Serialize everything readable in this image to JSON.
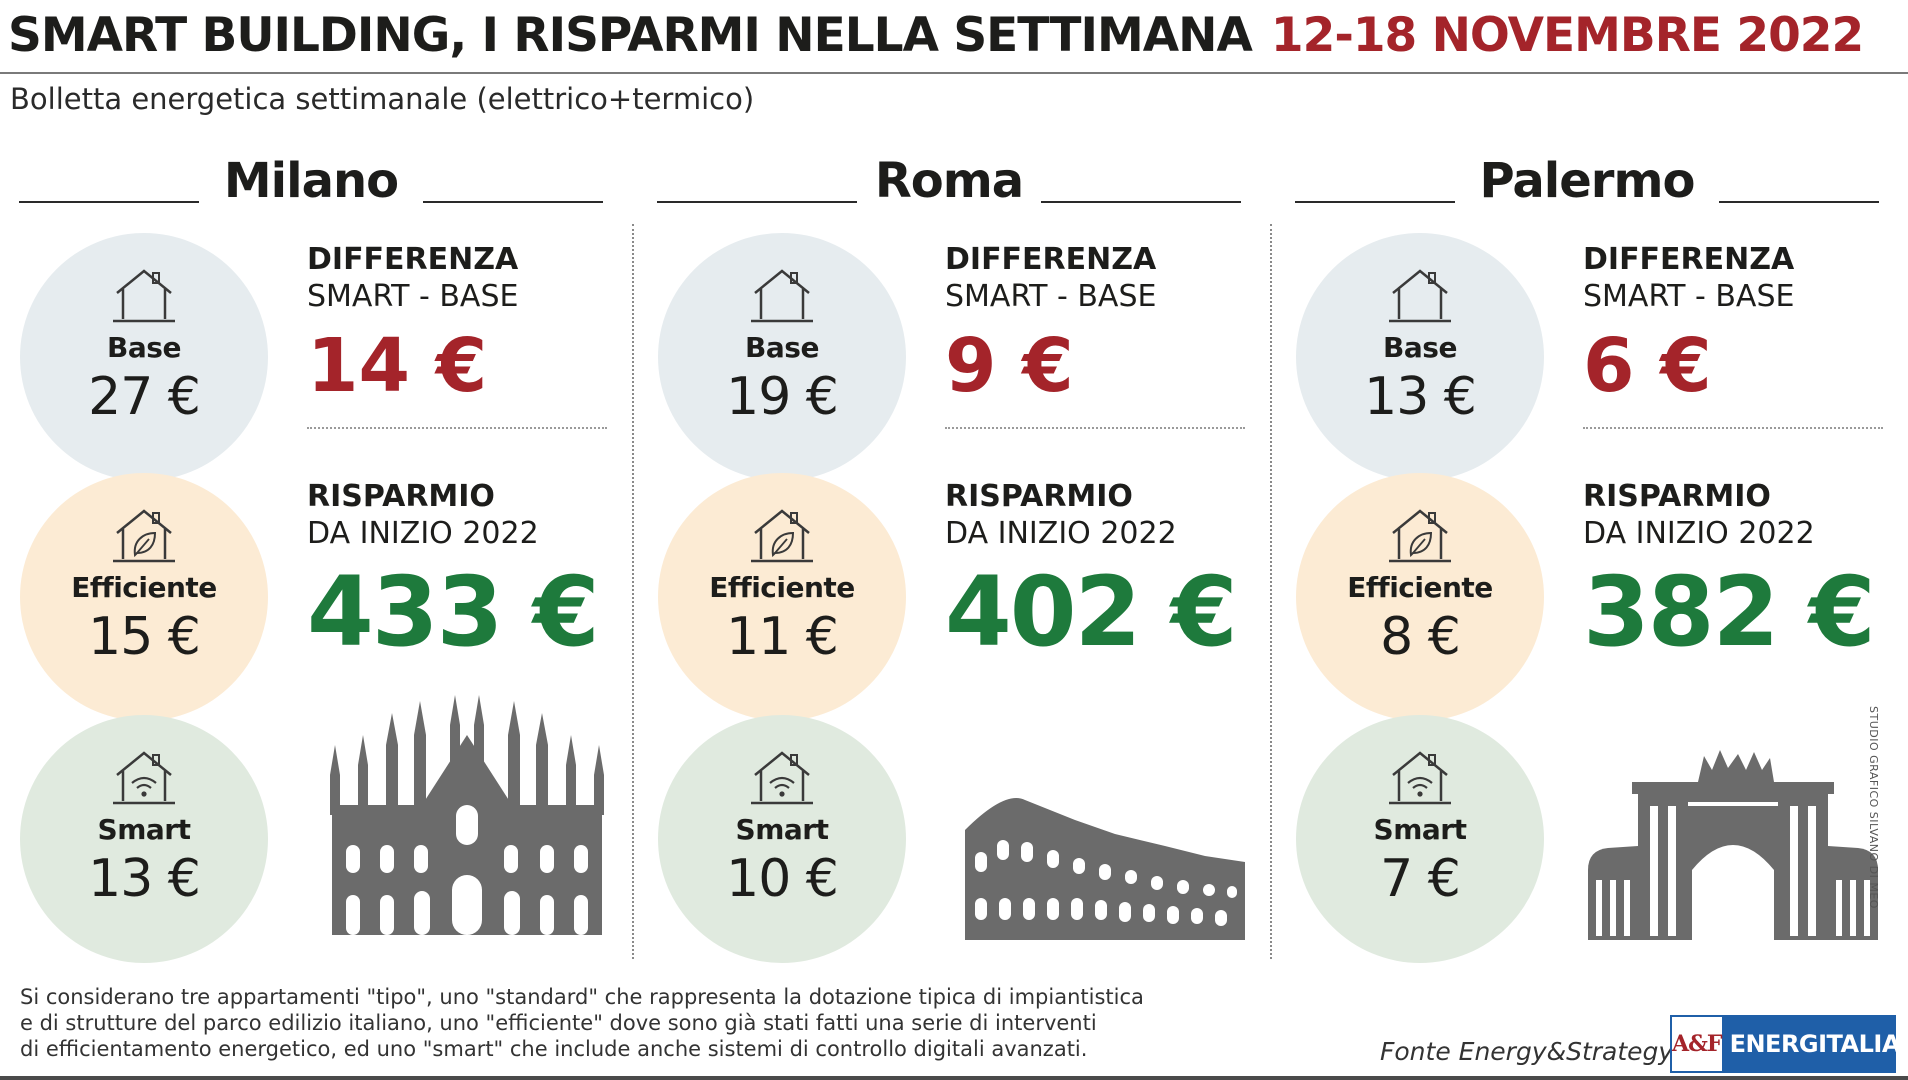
{
  "header": {
    "title": "SMART BUILDING, I RISPARMI NELLA SETTIMANA",
    "date": "12-18 NOVEMBRE 2022",
    "subtitle": "Bolletta energetica settimanale (elettrico+termico)"
  },
  "labels": {
    "base": "Base",
    "efficient": "Efficiente",
    "smart": "Smart",
    "difference_title": "DIFFERENZA",
    "difference_sub": "SMART - BASE",
    "savings_title": "RISPARMIO",
    "savings_sub": "DA INIZIO 2022"
  },
  "cities": [
    {
      "name": "Milano",
      "base": "27 €",
      "efficient": "15 €",
      "smart": "13 €",
      "difference": "14 €",
      "savings": "433 €"
    },
    {
      "name": "Roma",
      "base": "19 €",
      "efficient": "11 €",
      "smart": "10 €",
      "difference": "9 €",
      "savings": "402 €"
    },
    {
      "name": "Palermo",
      "base": "13 €",
      "efficient": "8 €",
      "smart": "7 €",
      "difference": "6 €",
      "savings": "382 €"
    }
  ],
  "footer": {
    "note_line1": "Si considerano tre appartamenti \"tipo\", uno \"standard\" che rappresenta la dotazione tipica di impiantistica",
    "note_line2": "e di strutture del parco edilizio italiano, uno \"efficiente\" dove sono già stati fatti una serie di interventi",
    "note_line3": "di efficientamento energetico, ed uno \"smart\" che include anche sistemi di controllo digitali avanzati.",
    "source": "Fonte Energy&Strategy",
    "logo_mark": "A&F",
    "logo_text": "ENERGITALIA",
    "credit": "STUDIO GRAFICO SILVANO DI MEO"
  },
  "colors": {
    "accent_red": "#a4242a",
    "savings_green": "#1e7a3c",
    "base_circle": "#e6ecef",
    "efficient_circle": "#fcebd4",
    "smart_circle": "#e0eadf",
    "landmark_gray": "#6b6b6b"
  },
  "icons": [
    "house-base-icon",
    "house-leaf-icon",
    "house-wifi-icon",
    "duomo-milano-icon",
    "colosseo-icon",
    "porta-felice-icon"
  ]
}
